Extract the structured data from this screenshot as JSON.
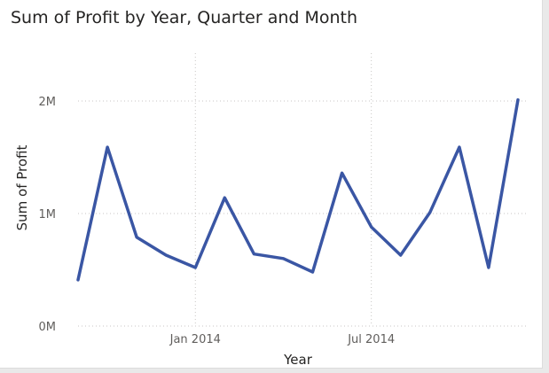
{
  "chart_data": {
    "type": "line",
    "title": "Sum of Profit by Year, Quarter and Month",
    "xlabel": "Year",
    "ylabel": "Sum of Profit",
    "x": [
      "2013-09",
      "2013-10",
      "2013-11",
      "2013-12",
      "2014-01",
      "2014-02",
      "2014-03",
      "2014-04",
      "2014-05",
      "2014-06",
      "2014-07",
      "2014-08",
      "2014-09",
      "2014-10",
      "2014-11",
      "2014-12"
    ],
    "series": [
      {
        "values": [
          410000,
          1590000,
          790000,
          630000,
          520000,
          1140000,
          640000,
          600000,
          480000,
          1360000,
          880000,
          630000,
          1010000,
          1590000,
          520000,
          2010000
        ]
      }
    ],
    "ylim": [
      0,
      2000000
    ],
    "yticks": [
      0,
      1000000,
      2000000
    ],
    "ytick_labels": [
      "0M",
      "1M",
      "2M"
    ],
    "xtick_labels": [
      {
        "at": "2014-01",
        "label": "Jan 2014"
      },
      {
        "at": "2014-07",
        "label": "Jul 2014"
      }
    ],
    "grid": true,
    "line_color": "#3a56a4"
  }
}
